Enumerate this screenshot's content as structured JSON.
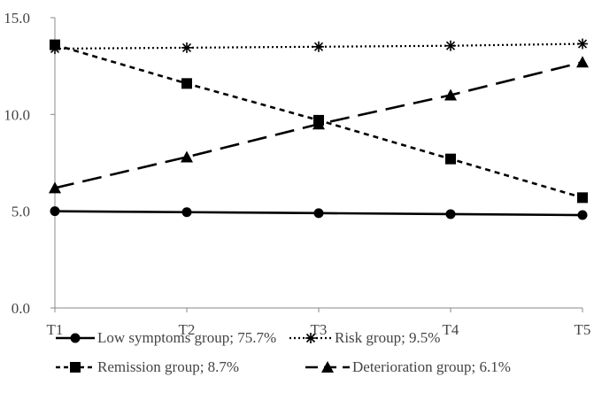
{
  "chart_data": {
    "type": "line",
    "categories": [
      "T1",
      "T2",
      "T3",
      "T4",
      "T5"
    ],
    "y_tick_labels": [
      "0.0",
      "5.0",
      "10.0",
      "15.0"
    ],
    "ylim": [
      0,
      15
    ],
    "grid": false,
    "legend_position": "bottom",
    "series": [
      {
        "name": "Low symptoms group; 75.7%",
        "marker": "circle",
        "line_style": "solid",
        "values": [
          5.0,
          4.95,
          4.9,
          4.85,
          4.8
        ]
      },
      {
        "name": "Risk group; 9.5%",
        "marker": "asterisk",
        "line_style": "dotted",
        "values": [
          13.4,
          13.45,
          13.5,
          13.55,
          13.65
        ]
      },
      {
        "name": "Remission group; 8.7%",
        "marker": "square",
        "line_style": "short-dash",
        "values": [
          13.6,
          11.6,
          9.7,
          7.7,
          5.7
        ]
      },
      {
        "name": "Deterioration group; 6.1%",
        "marker": "triangle",
        "line_style": "long-dash",
        "values": [
          6.2,
          7.8,
          9.5,
          11.0,
          12.7
        ]
      }
    ]
  }
}
